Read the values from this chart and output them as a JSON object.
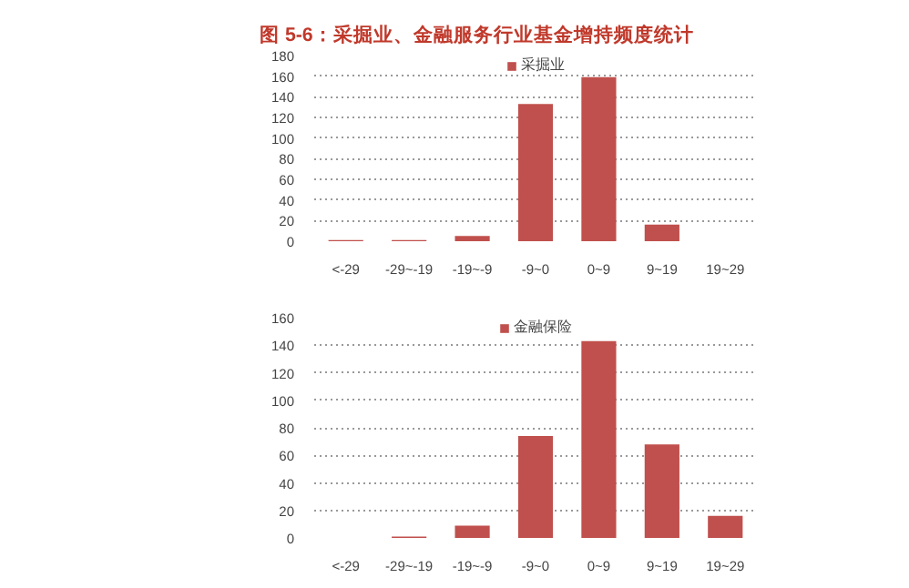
{
  "chart_data": [
    {
      "type": "bar",
      "title": "图 5-6：采掘业、金融服务行业基金增持频度统计",
      "categories": [
        "<-29",
        "-29~-19",
        "-19~-9",
        "-9~0",
        "0~9",
        "9~19",
        "19~29"
      ],
      "series": [
        {
          "name": "采掘业",
          "color": "#c0504d",
          "values": [
            1,
            1,
            5,
            133,
            159,
            16,
            0
          ]
        }
      ],
      "ylim": [
        0,
        180
      ],
      "yticks": [
        0,
        20,
        40,
        60,
        80,
        100,
        120,
        140,
        160,
        180
      ],
      "grid": "y",
      "legend": "top"
    },
    {
      "type": "bar",
      "categories": [
        "<-29",
        "-29~-19",
        "-19~-9",
        "-9~0",
        "0~9",
        "9~19",
        "19~29"
      ],
      "series": [
        {
          "name": "金融保险",
          "color": "#c0504d",
          "values": [
            0,
            1,
            9,
            74,
            143,
            68,
            16
          ]
        }
      ],
      "ylim": [
        0,
        160
      ],
      "yticks": [
        0,
        20,
        40,
        60,
        80,
        100,
        120,
        140,
        160
      ],
      "grid": "y",
      "legend": "top"
    }
  ]
}
